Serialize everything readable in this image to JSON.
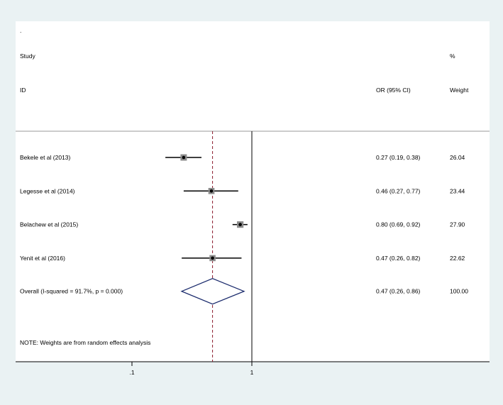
{
  "header": {
    "dot": ".",
    "study_label": "Study",
    "id_label": "ID",
    "effect_label": "OR (95% CI)",
    "percent_label": "%",
    "weight_label": "Weight"
  },
  "note": "NOTE: Weights are from random effects analysis",
  "colors": {
    "background": "#eaf2f3",
    "panel": "#ffffff",
    "reference_line": "#8b1a2b",
    "diamond": "#1a2a6c"
  },
  "chart_data": {
    "type": "forest",
    "x_scale": "log",
    "null_line": 1,
    "pooled_estimate_line": 0.47,
    "x_ticks": [
      {
        "value": 0.1,
        "label": ".1"
      },
      {
        "value": 1,
        "label": "1"
      }
    ],
    "studies": [
      {
        "label": "Bekele et al (2013)",
        "or": 0.27,
        "lower": 0.19,
        "upper": 0.38,
        "or_text": "0.27 (0.19, 0.38)",
        "weight": 26.04,
        "weight_text": "26.04"
      },
      {
        "label": "Legesse et al (2014)",
        "or": 0.46,
        "lower": 0.27,
        "upper": 0.77,
        "or_text": "0.46 (0.27, 0.77)",
        "weight": 23.44,
        "weight_text": "23.44"
      },
      {
        "label": "Belachew et al (2015)",
        "or": 0.8,
        "lower": 0.69,
        "upper": 0.92,
        "or_text": "0.80 (0.69, 0.92)",
        "weight": 27.9,
        "weight_text": "27.90"
      },
      {
        "label": "Yenit et al (2016)",
        "or": 0.47,
        "lower": 0.26,
        "upper": 0.82,
        "or_text": "0.47 (0.26, 0.82)",
        "weight": 22.62,
        "weight_text": "22.62"
      }
    ],
    "overall": {
      "label": "Overall  (I-squared = 91.7%, p = 0.000)",
      "or": 0.47,
      "lower": 0.26,
      "upper": 0.86,
      "or_text": "0.47 (0.26, 0.86)",
      "weight_text": "100.00"
    }
  }
}
